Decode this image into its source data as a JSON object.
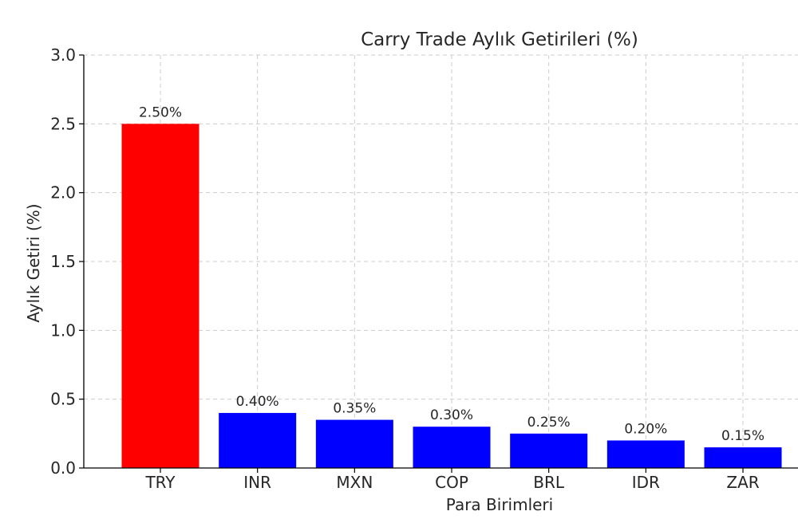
{
  "chart_data": {
    "type": "bar",
    "title": "Carry Trade Aylık Getirileri (%)",
    "xlabel": "Para Birimleri",
    "ylabel": "Aylık Getiri (%)",
    "categories": [
      "TRY",
      "INR",
      "MXN",
      "COP",
      "BRL",
      "IDR",
      "ZAR"
    ],
    "values": [
      2.5,
      0.4,
      0.35,
      0.3,
      0.25,
      0.2,
      0.15
    ],
    "data_labels": [
      "2.50%",
      "0.40%",
      "0.35%",
      "0.30%",
      "0.25%",
      "0.20%",
      "0.15%"
    ],
    "colors": [
      "#ff0000",
      "#0000ff",
      "#0000ff",
      "#0000ff",
      "#0000ff",
      "#0000ff",
      "#0000ff"
    ],
    "ylim": [
      0,
      3.0
    ],
    "yticks": [
      0,
      0.5,
      1.0,
      1.5,
      2.0,
      2.5,
      3.0
    ],
    "ytick_labels": [
      "0.0",
      "0.5",
      "1.0",
      "1.5",
      "2.0",
      "2.5",
      "3.0"
    ],
    "grid": true,
    "grid_style": "dashed",
    "grid_color": "#cccccc",
    "legend": false
  }
}
